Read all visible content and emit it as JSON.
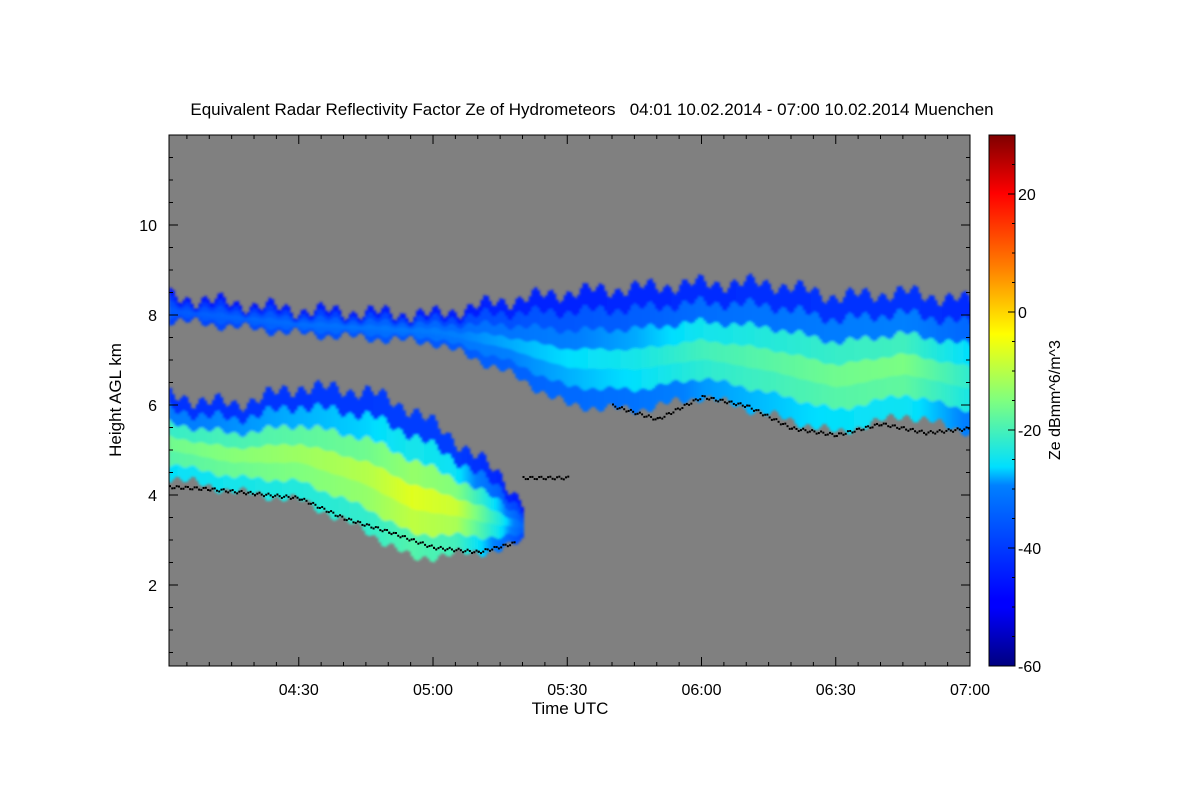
{
  "chart_data": {
    "type": "heatmap",
    "title": "Equivalent Radar Reflectivity Factor Ze of Hydrometeors   04:01 10.02.2014 - 07:00 10.02.2014 Muenchen",
    "xlabel": "Time UTC",
    "ylabel": "Height AGL km",
    "xlim": [
      "04:01",
      "07:00"
    ],
    "ylim": [
      0.2,
      12.0
    ],
    "x_ticks": [
      "04:30",
      "05:00",
      "05:30",
      "06:00",
      "06:30",
      "07:00"
    ],
    "y_ticks": [
      2,
      4,
      6,
      8,
      10
    ],
    "background_color": "#808080",
    "colorbar": {
      "label": "Ze dBmm^6/m^3",
      "range": [
        -60,
        30
      ],
      "ticks": [
        -60,
        -40,
        -20,
        0,
        20
      ],
      "colormap": "jet"
    },
    "series": [
      {
        "region": "upper layer",
        "time": [
          "04:01",
          "04:30",
          "05:00",
          "05:15",
          "05:30",
          "05:45",
          "06:00",
          "06:15",
          "06:30",
          "06:45",
          "07:00"
        ],
        "top_km": [
          8.4,
          8.1,
          8.0,
          8.3,
          8.5,
          8.6,
          8.7,
          8.7,
          8.4,
          8.5,
          8.3
        ],
        "base_km": [
          7.9,
          7.6,
          7.4,
          6.8,
          6.0,
          5.9,
          6.2,
          5.8,
          5.4,
          5.8,
          5.4
        ],
        "max_ze": [
          -35,
          -32,
          -30,
          -28,
          -26,
          -24,
          -20,
          -18,
          -16,
          -15,
          -22
        ]
      },
      {
        "region": "lower layer",
        "time": [
          "04:01",
          "04:15",
          "04:30",
          "04:45",
          "04:55",
          "05:05",
          "05:15",
          "05:20"
        ],
        "top_km": [
          6.2,
          6.0,
          6.4,
          6.3,
          5.9,
          5.2,
          4.4,
          3.8
        ],
        "base_km": [
          4.4,
          4.1,
          3.9,
          3.2,
          2.6,
          2.7,
          2.8,
          3.0
        ],
        "max_ze": [
          -16,
          -14,
          -12,
          -10,
          -6,
          -8,
          -24,
          -34
        ]
      }
    ],
    "cloud_base_line": {
      "time": [
        "04:01",
        "04:10",
        "04:20",
        "04:30",
        "04:40",
        "04:50",
        "05:00",
        "05:10",
        "05:18",
        "05:20",
        "05:30",
        "05:40",
        "05:50",
        "06:00",
        "06:10",
        "06:20",
        "06:30",
        "06:40",
        "06:50",
        "07:00"
      ],
      "height_km": [
        4.2,
        4.15,
        4.05,
        3.95,
        3.5,
        3.2,
        2.85,
        2.75,
        2.95,
        4.4,
        4.4,
        6.0,
        5.7,
        6.2,
        6.0,
        5.5,
        5.35,
        5.6,
        5.4,
        5.5
      ]
    }
  }
}
